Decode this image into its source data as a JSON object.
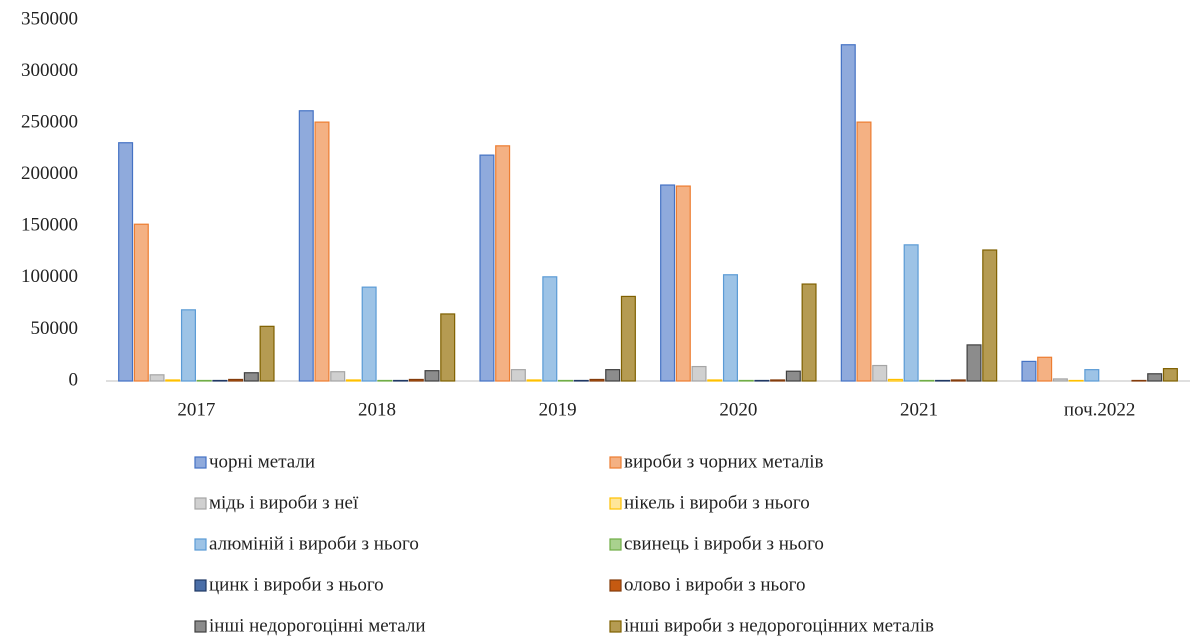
{
  "chart_data": {
    "type": "bar",
    "categories": [
      "2017",
      "2018",
      "2019",
      "2020",
      "2021",
      "поч.2022"
    ],
    "series": [
      {
        "name": "чорні метали",
        "color": "#8faadc",
        "border": "#4472c4",
        "values": [
          231000,
          262000,
          219000,
          190000,
          326000,
          19000
        ]
      },
      {
        "name": "вироби з чорних металів",
        "color": "#f4b183",
        "border": "#ed7d31",
        "values": [
          152000,
          251000,
          228000,
          189000,
          251000,
          23000
        ]
      },
      {
        "name": "мідь і вироби з неї",
        "color": "#d0d0d0",
        "border": "#a5a5a5",
        "values": [
          6000,
          9000,
          11000,
          14000,
          15000,
          2000
        ]
      },
      {
        "name": "нікель і вироби з нього",
        "color": "#ffe699",
        "border": "#ffc000",
        "values": [
          1000,
          1000,
          1000,
          1000,
          1500,
          500
        ]
      },
      {
        "name": "алюміній і вироби з нього",
        "color": "#9dc3e6",
        "border": "#5b9bd5",
        "values": [
          69000,
          91000,
          101000,
          103000,
          132000,
          11000
        ]
      },
      {
        "name": "свинець і вироби з нього",
        "color": "#a9d18e",
        "border": "#70ad47",
        "values": [
          500,
          500,
          500,
          500,
          500,
          0
        ]
      },
      {
        "name": "цинк і вироби з нього",
        "color": "#4a6ea8",
        "border": "#203864",
        "values": [
          500,
          500,
          500,
          500,
          500,
          0
        ]
      },
      {
        "name": "олово і вироби з нього",
        "color": "#c55a11",
        "border": "#843c0c",
        "values": [
          1500,
          1500,
          1500,
          1000,
          1000,
          500
        ]
      },
      {
        "name": "інші недорогоцінні метали",
        "color": "#8c8c8c",
        "border": "#404040",
        "values": [
          8000,
          10000,
          11000,
          9500,
          35000,
          7000
        ]
      },
      {
        "name": "інші вироби з недорогоцінних металів",
        "color": "#b59b52",
        "border": "#7f6000",
        "values": [
          53000,
          65000,
          82000,
          94000,
          127000,
          12000
        ]
      }
    ],
    "ylim": [
      0,
      350000
    ],
    "yticks": [
      0,
      50000,
      100000,
      150000,
      200000,
      250000,
      300000,
      350000
    ]
  }
}
